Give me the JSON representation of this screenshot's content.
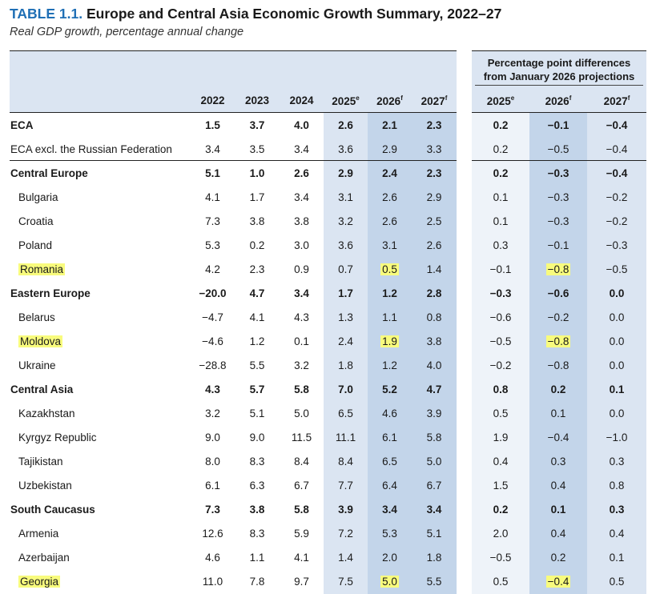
{
  "title": {
    "number": "TABLE 1.1.",
    "text": "Europe and Central Asia Economic Growth Summary, 2022–27",
    "subtitle": "Real GDP growth, percentage annual change"
  },
  "diff_header": {
    "line1": "Percentage point differences",
    "line2": "from January 2026 projections"
  },
  "columns": {
    "main": [
      {
        "label": "2022",
        "sup": ""
      },
      {
        "label": "2023",
        "sup": ""
      },
      {
        "label": "2024",
        "sup": ""
      },
      {
        "label": "2025",
        "sup": "e"
      },
      {
        "label": "2026",
        "sup": "f"
      },
      {
        "label": "2027",
        "sup": "f"
      }
    ],
    "diff": [
      {
        "label": "2025",
        "sup": "e"
      },
      {
        "label": "2026",
        "sup": "f"
      },
      {
        "label": "2027",
        "sup": "f"
      }
    ]
  },
  "highlight_color": "#f8fb7d",
  "rows": [
    {
      "name": "ECA",
      "type": "group",
      "values": [
        "1.5",
        "3.7",
        "4.0",
        "2.6",
        "2.1",
        "2.3"
      ],
      "diffs": [
        "0.2",
        "−0.1",
        "−0.4"
      ]
    },
    {
      "name": "ECA excl. the Russian Federation",
      "type": "plain",
      "values": [
        "3.4",
        "3.5",
        "3.4",
        "3.6",
        "2.9",
        "3.3"
      ],
      "diffs": [
        "0.2",
        "−0.5",
        "−0.4"
      ]
    },
    {
      "name": "Central Europe",
      "type": "group",
      "values": [
        "5.1",
        "1.0",
        "2.6",
        "2.9",
        "2.4",
        "2.3"
      ],
      "diffs": [
        "0.2",
        "−0.3",
        "−0.4"
      ]
    },
    {
      "name": "Bulgaria",
      "type": "sub",
      "values": [
        "4.1",
        "1.7",
        "3.4",
        "3.1",
        "2.6",
        "2.9"
      ],
      "diffs": [
        "0.1",
        "−0.3",
        "−0.2"
      ]
    },
    {
      "name": "Croatia",
      "type": "sub",
      "values": [
        "7.3",
        "3.8",
        "3.8",
        "3.2",
        "2.6",
        "2.5"
      ],
      "diffs": [
        "0.1",
        "−0.3",
        "−0.2"
      ]
    },
    {
      "name": "Poland",
      "type": "sub",
      "values": [
        "5.3",
        "0.2",
        "3.0",
        "3.6",
        "3.1",
        "2.6"
      ],
      "diffs": [
        "0.3",
        "−0.1",
        "−0.3"
      ]
    },
    {
      "name": "Romania",
      "type": "sub",
      "highlight": true,
      "values": [
        "4.2",
        "2.3",
        "0.9",
        "0.7",
        "0.5",
        "1.4"
      ],
      "diffs": [
        "−0.1",
        "−0.8",
        "−0.5"
      ]
    },
    {
      "name": "Eastern Europe",
      "type": "group",
      "values": [
        "−20.0",
        "4.7",
        "3.4",
        "1.7",
        "1.2",
        "2.8"
      ],
      "diffs": [
        "−0.3",
        "−0.6",
        "0.0"
      ]
    },
    {
      "name": "Belarus",
      "type": "sub",
      "values": [
        "−4.7",
        "4.1",
        "4.3",
        "1.3",
        "1.1",
        "0.8"
      ],
      "diffs": [
        "−0.6",
        "−0.2",
        "0.0"
      ]
    },
    {
      "name": "Moldova",
      "type": "sub",
      "highlight": true,
      "values": [
        "−4.6",
        "1.2",
        "0.1",
        "2.4",
        "1.9",
        "3.8"
      ],
      "diffs": [
        "−0.5",
        "−0.8",
        "0.0"
      ]
    },
    {
      "name": "Ukraine",
      "type": "sub",
      "values": [
        "−28.8",
        "5.5",
        "3.2",
        "1.8",
        "1.2",
        "4.0"
      ],
      "diffs": [
        "−0.2",
        "−0.8",
        "0.0"
      ]
    },
    {
      "name": "Central Asia",
      "type": "group",
      "values": [
        "4.3",
        "5.7",
        "5.8",
        "7.0",
        "5.2",
        "4.7"
      ],
      "diffs": [
        "0.8",
        "0.2",
        "0.1"
      ]
    },
    {
      "name": "Kazakhstan",
      "type": "sub",
      "values": [
        "3.2",
        "5.1",
        "5.0",
        "6.5",
        "4.6",
        "3.9"
      ],
      "diffs": [
        "0.5",
        "0.1",
        "0.0"
      ]
    },
    {
      "name": "Kyrgyz Republic",
      "type": "sub",
      "values": [
        "9.0",
        "9.0",
        "11.5",
        "11.1",
        "6.1",
        "5.8"
      ],
      "diffs": [
        "1.9",
        "−0.4",
        "−1.0"
      ]
    },
    {
      "name": "Tajikistan",
      "type": "sub",
      "values": [
        "8.0",
        "8.3",
        "8.4",
        "8.4",
        "6.5",
        "5.0"
      ],
      "diffs": [
        "0.4",
        "0.3",
        "0.3"
      ]
    },
    {
      "name": "Uzbekistan",
      "type": "sub",
      "values": [
        "6.1",
        "6.3",
        "6.7",
        "7.7",
        "6.4",
        "6.7"
      ],
      "diffs": [
        "1.5",
        "0.4",
        "0.8"
      ]
    },
    {
      "name": "South Caucasus",
      "type": "group",
      "values": [
        "7.3",
        "3.8",
        "5.8",
        "3.9",
        "3.4",
        "3.4"
      ],
      "diffs": [
        "0.2",
        "0.1",
        "0.3"
      ]
    },
    {
      "name": "Armenia",
      "type": "sub",
      "values": [
        "12.6",
        "8.3",
        "5.9",
        "7.2",
        "5.3",
        "5.1"
      ],
      "diffs": [
        "2.0",
        "0.4",
        "0.4"
      ]
    },
    {
      "name": "Azerbaijan",
      "type": "sub",
      "values": [
        "4.6",
        "1.1",
        "4.1",
        "1.4",
        "2.0",
        "1.8"
      ],
      "diffs": [
        "−0.5",
        "0.2",
        "0.1"
      ]
    },
    {
      "name": "Georgia",
      "type": "sub",
      "highlight": true,
      "values": [
        "11.0",
        "7.8",
        "9.7",
        "7.5",
        "5.0",
        "5.5"
      ],
      "diffs": [
        "0.5",
        "−0.4",
        "0.5"
      ]
    }
  ]
}
